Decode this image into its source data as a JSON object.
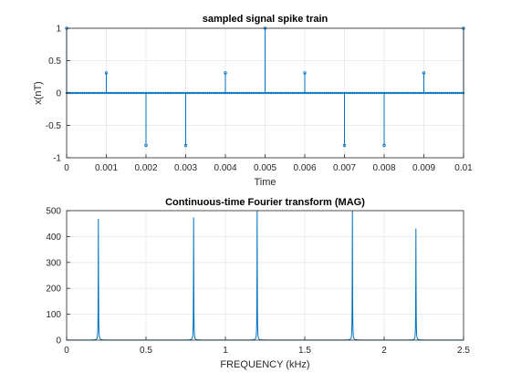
{
  "chart_data": [
    {
      "type": "stem",
      "title": "sampled signal spike train",
      "xlabel": "Time",
      "ylabel": "x(nT)",
      "xlim": [
        0,
        0.01
      ],
      "ylim": [
        -1,
        1
      ],
      "xticks": [
        "0",
        "0.001",
        "0.002",
        "0.003",
        "0.004",
        "0.005",
        "0.006",
        "0.007",
        "0.008",
        "0.009",
        "0.01"
      ],
      "yticks": [
        "-1",
        "-0.5",
        "0",
        "0.5",
        "1"
      ],
      "grid": true,
      "color": "#0072BD",
      "series": [
        {
          "x": [
            0,
            0.001,
            0.002,
            0.003,
            0.004,
            0.005,
            0.006,
            0.007,
            0.008,
            0.009,
            0.01
          ],
          "y": [
            1,
            0.31,
            -0.81,
            -0.81,
            0.31,
            1,
            0.31,
            -0.81,
            -0.81,
            0.31,
            1
          ]
        }
      ]
    },
    {
      "type": "line",
      "title": "Continuous-time Fourier transform (MAG)",
      "xlabel": "FREQUENCY (kHz)",
      "ylabel": "",
      "xlim": [
        0,
        2.5
      ],
      "ylim": [
        0,
        500
      ],
      "xticks": [
        "0",
        "0.5",
        "1",
        "1.5",
        "2",
        "2.5"
      ],
      "yticks": [
        "0",
        "100",
        "200",
        "300",
        "400",
        "500"
      ],
      "grid": true,
      "color": "#0072BD",
      "series": [
        {
          "peaks_x": [
            0.2,
            0.8,
            1.2,
            1.8,
            2.2
          ],
          "peaks_y": [
            468,
            473,
            500,
            500,
            430
          ]
        }
      ]
    }
  ]
}
